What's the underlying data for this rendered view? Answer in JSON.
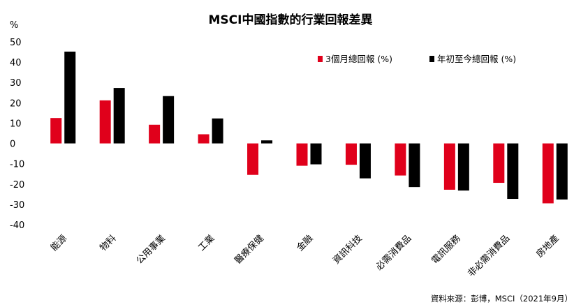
{
  "chart_data": {
    "type": "bar",
    "title": "MSCI中國指數的行業回報差異",
    "ylabel": "%",
    "ylim": [
      -40,
      50
    ],
    "yticks": [
      50,
      40,
      30,
      20,
      10,
      0,
      -10,
      -20,
      -30,
      -40
    ],
    "grid": false,
    "legend_position": "top-right",
    "categories": [
      "能源",
      "物料",
      "公用事業",
      "工業",
      "醫療保健",
      "金融",
      "資訊科技",
      "必需消費品",
      "電訊服務",
      "非必需消費品",
      "房地產"
    ],
    "series": [
      {
        "name": "3個月總回報 (%)",
        "color": "#e0001b",
        "values": [
          12.5,
          21.2,
          9.2,
          4.5,
          -15.5,
          -11,
          -10.5,
          -15.8,
          -22.8,
          -19.4,
          -29.5
        ]
      },
      {
        "name": "年初至今總回報 (%)",
        "color": "#000000",
        "values": [
          45.2,
          27.3,
          23.3,
          12.3,
          1.5,
          -10.3,
          -17.2,
          -21.5,
          -23.2,
          -27.3,
          -27.6
        ]
      }
    ],
    "source": "資料來源：彭博，MSCI（2021年9月）"
  }
}
